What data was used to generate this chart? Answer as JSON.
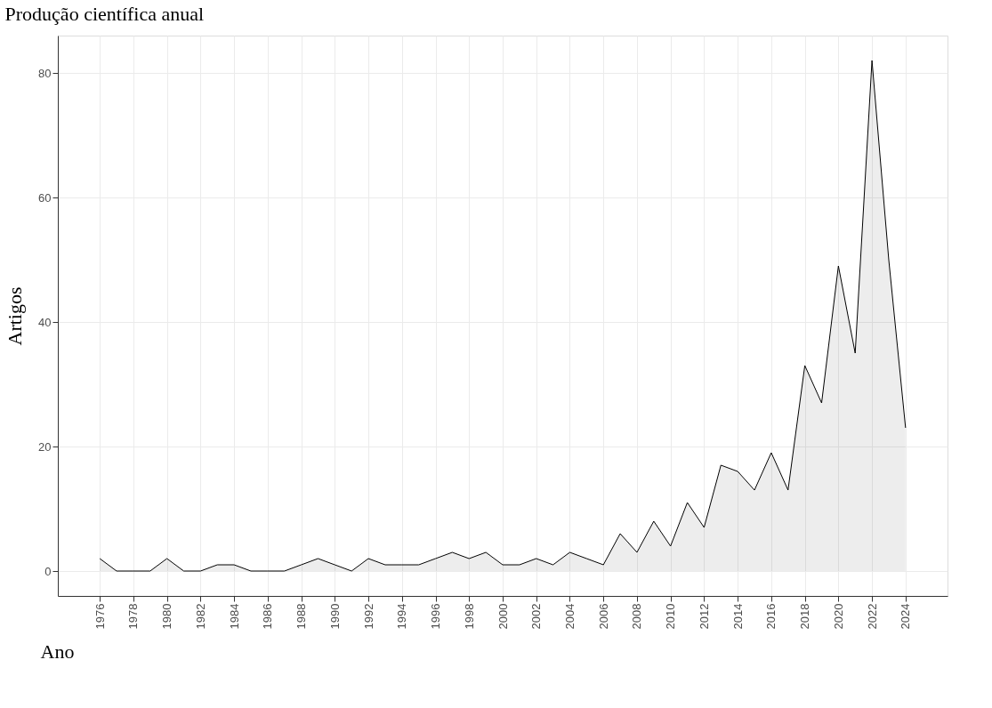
{
  "chart_data": {
    "type": "area",
    "title": "Produção científica anual",
    "xlabel": "Ano",
    "ylabel": "Artigos",
    "x": [
      1976,
      1977,
      1978,
      1979,
      1980,
      1981,
      1982,
      1983,
      1984,
      1985,
      1986,
      1987,
      1988,
      1989,
      1990,
      1991,
      1992,
      1993,
      1994,
      1995,
      1996,
      1997,
      1998,
      1999,
      2000,
      2001,
      2002,
      2003,
      2004,
      2005,
      2006,
      2007,
      2008,
      2009,
      2010,
      2011,
      2012,
      2013,
      2014,
      2015,
      2016,
      2017,
      2018,
      2019,
      2020,
      2021,
      2022,
      2023,
      2024
    ],
    "series": [
      {
        "color": "#000000",
        "values": [
          2,
          0,
          0,
          0,
          2,
          0,
          0,
          1,
          1,
          0,
          0,
          0,
          1,
          2,
          1,
          0,
          2,
          1,
          1,
          1,
          2,
          3,
          2,
          3,
          1,
          1,
          2,
          1,
          3,
          2,
          1,
          6,
          3,
          8,
          4,
          11,
          7,
          17,
          16,
          13,
          19,
          13,
          33,
          27,
          49,
          35,
          82,
          50,
          23
        ]
      }
    ],
    "xlim": [
      1973.5,
      2026.5
    ],
    "ylim": [
      -4,
      86
    ],
    "xticks": [
      1976,
      1978,
      1980,
      1982,
      1984,
      1986,
      1988,
      1990,
      1992,
      1994,
      1996,
      1998,
      2000,
      2002,
      2004,
      2006,
      2008,
      2010,
      2012,
      2014,
      2016,
      2018,
      2020,
      2022,
      2024
    ],
    "yticks": [
      0,
      20,
      40,
      60,
      80
    ],
    "grid": true
  }
}
